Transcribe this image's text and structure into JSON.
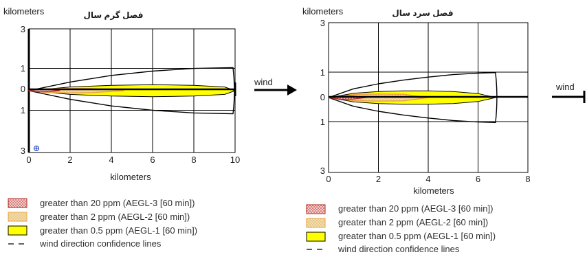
{
  "colors": {
    "aegl3_fill": "#f3cfcf",
    "aegl3_edge": "#b3261e",
    "aegl2_fill": "#f3deb0",
    "aegl2_edge": "#f0a23a",
    "aegl1_fill": "#ffff00",
    "outline": "#000000"
  },
  "legend": [
    {
      "key": "aegl3",
      "label": "greater than 20 ppm (AEGL-3 [60 min])"
    },
    {
      "key": "aegl2",
      "label": "greater than 2 ppm (AEGL-2 [60 min])"
    },
    {
      "key": "aegl1",
      "label": "greater than 0.5 ppm (AEGL-1 [60 min])"
    },
    {
      "key": "conf",
      "label": "wind direction confidence lines"
    }
  ],
  "chart_data": [
    {
      "type": "area",
      "title": "فصل گرم سال",
      "ylabel": "kilometers",
      "xlabel": "kilometers",
      "xlim": [
        0,
        10
      ],
      "ylim": [
        -3,
        3
      ],
      "x_ticks": [
        "0",
        "2",
        "4",
        "6",
        "8",
        "10"
      ],
      "y_ticks": [
        "3",
        "1",
        "0",
        "1",
        "3"
      ],
      "arrow_label": "wind",
      "series": [
        {
          "key": "aegl1",
          "x": [
            0,
            2,
            4,
            6,
            8,
            9.5,
            10
          ],
          "half_width": [
            0,
            0.18,
            0.26,
            0.29,
            0.26,
            0.18,
            0
          ]
        },
        {
          "key": "aegl2",
          "x": [
            0,
            1,
            2,
            3,
            4.6
          ],
          "half_width": [
            0,
            0.09,
            0.11,
            0.1,
            0
          ]
        },
        {
          "key": "aegl3",
          "x": [
            0,
            0.5,
            1,
            1.5
          ],
          "half_width": [
            0,
            0.06,
            0.05,
            0
          ]
        },
        {
          "key": "conf",
          "x": [
            0,
            2,
            4,
            6,
            8,
            9.9
          ],
          "half_width": [
            0,
            0.42,
            0.74,
            0.95,
            1.08,
            1.12
          ]
        }
      ]
    },
    {
      "type": "area",
      "title": "فصل سرد سال",
      "ylabel": "kilometers",
      "xlabel": "kilometers",
      "xlim": [
        0,
        8
      ],
      "ylim": [
        -3,
        3
      ],
      "x_ticks": [
        "0",
        "2",
        "4",
        "6",
        "8"
      ],
      "y_ticks": [
        "3",
        "1",
        "0",
        "1",
        "3"
      ],
      "arrow_label": "wind",
      "series": [
        {
          "key": "aegl1",
          "x": [
            0,
            1,
            2,
            3,
            4,
            5,
            6,
            6.7
          ],
          "half_width": [
            0,
            0.17,
            0.24,
            0.27,
            0.27,
            0.24,
            0.16,
            0
          ]
        },
        {
          "key": "aegl2",
          "x": [
            0,
            1,
            2,
            3,
            4
          ],
          "half_width": [
            0,
            0.12,
            0.14,
            0.13,
            0
          ]
        },
        {
          "key": "aegl3",
          "x": [
            0,
            0.5,
            1,
            1.5
          ],
          "half_width": [
            0,
            0.07,
            0.06,
            0
          ]
        },
        {
          "key": "conf",
          "x": [
            0,
            1,
            2,
            3,
            4,
            5,
            6,
            6.7
          ],
          "half_width": [
            0,
            0.35,
            0.55,
            0.7,
            0.82,
            0.92,
            0.98,
            1.0
          ]
        }
      ]
    }
  ]
}
